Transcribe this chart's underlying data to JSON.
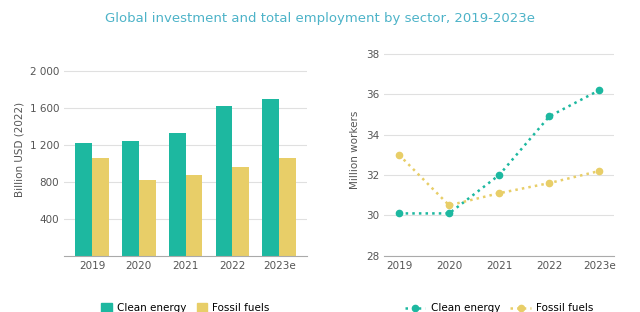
{
  "title": "Global investment and total employment by sector, 2019-2023e",
  "title_color": "#4db3c8",
  "years": [
    "2019",
    "2020",
    "2021",
    "2022",
    "2023e"
  ],
  "bar_clean": [
    1220,
    1240,
    1330,
    1620,
    1700
  ],
  "bar_fossil": [
    1060,
    820,
    880,
    960,
    1060
  ],
  "bar_clean_color": "#1db8a0",
  "bar_fossil_color": "#e8ce68",
  "bar_ylabel": "Billion USD (2022)",
  "bar_ylim": [
    0,
    2300
  ],
  "bar_yticks": [
    400,
    800,
    1200,
    1600,
    2000
  ],
  "bar_ytick_labels": [
    "400",
    "800",
    "1 200",
    "1 600",
    "2 000"
  ],
  "line_clean": [
    30.1,
    30.1,
    32.0,
    34.9,
    36.2
  ],
  "line_fossil": [
    33.0,
    30.5,
    31.1,
    31.6,
    32.2
  ],
  "line_clean_color": "#1db8a0",
  "line_fossil_color": "#e8ce68",
  "line_ylabel": "Million workers",
  "line_ylim": [
    28,
    38.5
  ],
  "line_yticks": [
    28,
    30,
    32,
    34,
    36,
    38
  ],
  "background_color": "#ffffff",
  "grid_color": "#e0e0e0",
  "axis_color": "#aaaaaa",
  "tick_color": "#555555",
  "title_fontsize": 9.5,
  "label_fontsize": 7.5,
  "tick_fontsize": 7.5,
  "legend_fontsize": 7.5
}
